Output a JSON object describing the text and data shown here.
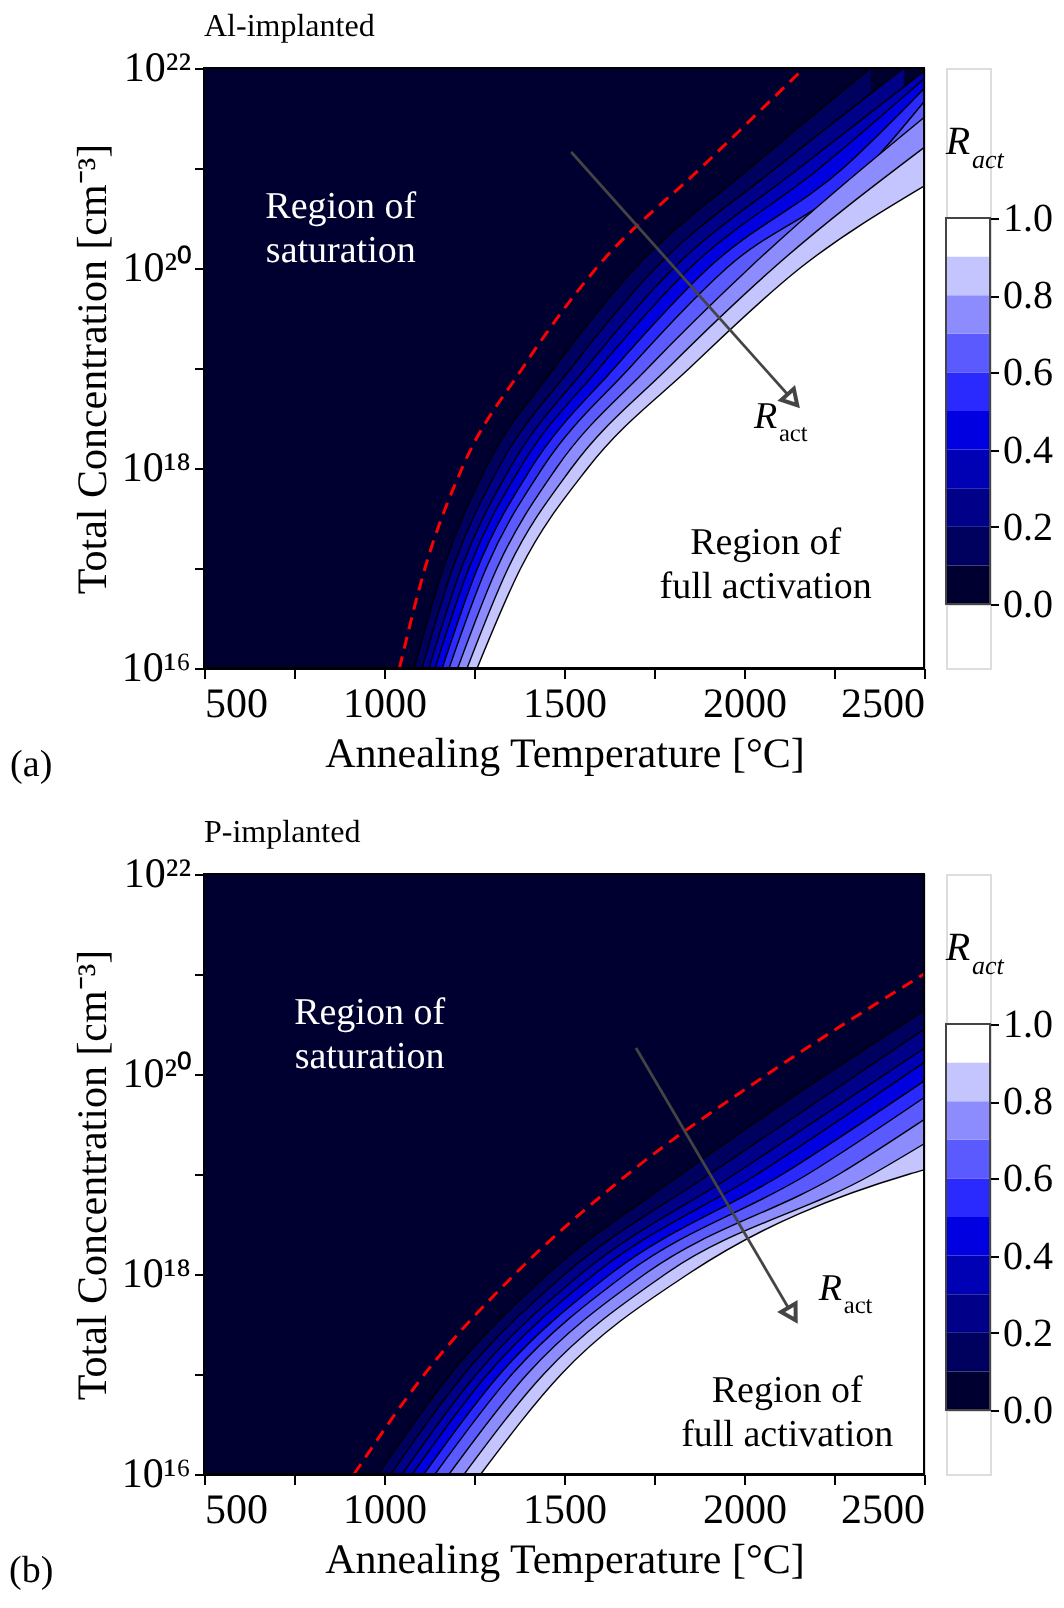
{
  "chart_data": [
    {
      "type": "area",
      "title": "Al-implanted",
      "xlabel": "Annealing Temperature [°C]",
      "ylabel": "Total Concentration [cm⁻³]",
      "clabel": "R$_{act}$",
      "log": "y",
      "xlim": [
        500,
        2500
      ],
      "ylim": [
        1e+16,
        1e+22
      ],
      "xticks": [
        500,
        {
          "value": 750,
          "label": null
        },
        1000,
        {
          "value": 1250,
          "label": null
        },
        1500,
        {
          "value": 1750,
          "label": null
        },
        2000,
        {
          "value": 2250,
          "label": null
        },
        2500
      ],
      "yticks": [
        {
          "value": 1e+16,
          "label": "10¹⁶"
        },
        {
          "value": 1e+17,
          "label": null
        },
        {
          "value": 1e+18,
          "label": "10¹⁸"
        },
        {
          "value": 1e+19,
          "label": null
        },
        {
          "value": 1e+20,
          "label": "10²⁰"
        },
        {
          "value": 1e+21,
          "label": null
        },
        {
          "value": 1e+22,
          "label": "10²²"
        }
      ],
      "clim": [
        0,
        1
      ],
      "cticks": [
        {
          "value": 0,
          "label": "0.0"
        },
        {
          "value": 0.2,
          "label": "0.2"
        },
        {
          "value": 0.4,
          "label": "0.4"
        },
        {
          "value": 0.6,
          "label": "0.6"
        },
        {
          "value": 0.8,
          "label": "0.8"
        },
        {
          "value": 1,
          "label": "1.0"
        }
      ],
      "bands": [
        {
          "axis": "x",
          "from": 500,
          "to": 2500,
          "color": "#000030"
        }
      ],
      "series": [
        {
          "color": "#00005e",
          "x": [
            1084,
            1165,
            1283,
            1473,
            1698,
            2017,
            2352
          ],
          "values": [
            1e+16,
            1e+17,
            1e+18,
            1e+19,
            1e+20,
            1e+21,
            1e+22
          ]
        },
        {
          "color": "#000088",
          "x": [
            1106,
            1191,
            1318,
            1520,
            1754,
            2089,
            2444
          ],
          "values": [
            1e+16,
            1e+17,
            1e+18,
            1e+19,
            1e+20,
            1e+21,
            1e+22
          ]
        },
        {
          "color": "#0000b4",
          "x": [
            1125,
            1215,
            1350,
            1561,
            1805,
            2154,
            2500
          ],
          "values": [
            1e+16,
            1e+17,
            1e+18,
            1e+19,
            1e+20,
            1e+21,
            9.3e+21
          ]
        },
        {
          "color": "#0000e0",
          "x": [
            1142,
            1236,
            1378,
            1598,
            1850,
            2211,
            2500
          ],
          "values": [
            1e+16,
            1e+17,
            1e+18,
            1e+19,
            1e+20,
            1e+21,
            7.8e+21
          ]
        },
        {
          "color": "#2a2aff",
          "x": [
            1162,
            1260,
            1409,
            1640,
            1901,
            2276,
            2500
          ],
          "values": [
            1e+16,
            1e+17,
            1e+18,
            1e+19,
            1e+20,
            1e+21,
            6.2e+21
          ]
        },
        {
          "color": "#5a5aff",
          "x": [
            1181,
            1284,
            1440,
            1682,
            1952,
            2341,
            2500
          ],
          "values": [
            1e+16,
            1e+17,
            1e+18,
            1e+19,
            1e+20,
            1e+21,
            4.6e+21
          ]
        },
        {
          "color": "#8c8cff",
          "x": [
            1205,
            1314,
            1479,
            1733,
            2015,
            2500
          ],
          "values": [
            1e+16,
            1e+17,
            1e+18,
            1e+19,
            1e+20,
            3.2e+21
          ]
        },
        {
          "color": "#c4c4ff",
          "x": [
            1231,
            1345,
            1521,
            1789,
            2082,
            2500
          ],
          "values": [
            1e+16,
            1e+17,
            1e+18,
            1e+19,
            1e+20,
            1.6e+21
          ]
        },
        {
          "color": "#ffffff",
          "x": [
            1259,
            1380,
            1566,
            1849,
            2156,
            2500
          ],
          "values": [
            1e+16,
            1e+17,
            1e+18,
            1e+19,
            1e+20,
            6.6e+20
          ]
        },
        {
          "type": "line",
          "line_style": "dashed",
          "color": "#ff0000",
          "x": [
            1043,
            1114,
            1217,
            1385,
            1590,
            1880,
            2167
          ],
          "values": [
            1e+16,
            1e+17,
            1e+18,
            1e+19,
            1e+20,
            1e+21,
            1e+22
          ]
        }
      ],
      "annotations": [
        "Region of saturation",
        "Region of full activation",
        "R$_{act}$",
        "(a)"
      ]
    },
    {
      "type": "area",
      "title": "P-implanted",
      "xlabel": "Annealing Temperature [°C]",
      "ylabel": "Total Concentration [cm⁻³]",
      "clabel": "R$_{act}$",
      "log": "y",
      "xlim": [
        500,
        2500
      ],
      "ylim": [
        1e+16,
        1e+22
      ],
      "xticks": [
        500,
        {
          "value": 750,
          "label": null
        },
        1000,
        {
          "value": 1250,
          "label": null
        },
        1500,
        {
          "value": 1750,
          "label": null
        },
        2000,
        {
          "value": 2250,
          "label": null
        },
        2500
      ],
      "yticks": [
        {
          "value": 1e+16,
          "label": "10¹⁶"
        },
        {
          "value": 1e+17,
          "label": null
        },
        {
          "value": 1e+18,
          "label": "10¹⁸"
        },
        {
          "value": 1e+19,
          "label": null
        },
        {
          "value": 1e+20,
          "label": "10²⁰"
        },
        {
          "value": 1e+21,
          "label": null
        },
        {
          "value": 1e+22,
          "label": "10²²"
        }
      ],
      "clim": [
        0,
        1
      ],
      "cticks": [
        {
          "value": 0,
          "label": "0.0"
        },
        {
          "value": 0.2,
          "label": "0.2"
        },
        {
          "value": 0.4,
          "label": "0.4"
        },
        {
          "value": 0.6,
          "label": "0.6"
        },
        {
          "value": 0.8,
          "label": "0.8"
        },
        {
          "value": 1,
          "label": "1.0"
        }
      ],
      "bands": [
        {
          "axis": "x",
          "from": 500,
          "to": 2500,
          "color": "#000030"
        }
      ],
      "series": [
        {
          "color": "#00005e",
          "x": [
            984,
            1185,
            1455,
            1827,
            2500
          ],
          "values": [
            1e+16,
            1e+17,
            1e+18,
            1e+19,
            4.3e+20
          ]
        },
        {
          "color": "#000088",
          "x": [
            1019,
            1223,
            1503,
            1905,
            2500
          ],
          "values": [
            1e+16,
            1e+17,
            1e+18,
            1e+19,
            2.8e+20
          ]
        },
        {
          "color": "#0000b4",
          "x": [
            1051,
            1257,
            1547,
            1975,
            2500
          ],
          "values": [
            1e+16,
            1e+17,
            1e+18,
            1e+19,
            1.8e+20
          ]
        },
        {
          "color": "#0000e0",
          "x": [
            1079,
            1288,
            1585,
            2038,
            2500
          ],
          "values": [
            1e+16,
            1e+17,
            1e+18,
            1e+19,
            1.3e+20
          ]
        },
        {
          "color": "#2a2aff",
          "x": [
            1111,
            1322,
            1629,
            2108,
            2500
          ],
          "values": [
            1e+16,
            1e+17,
            1e+18,
            1e+19,
            8.5e+19
          ]
        },
        {
          "color": "#5a5aff",
          "x": [
            1142,
            1356,
            1672,
            2178,
            2500
          ],
          "values": [
            1e+16,
            1e+17,
            1e+18,
            1e+19,
            5.8e+19
          ]
        },
        {
          "color": "#8c8cff",
          "x": [
            1181,
            1398,
            1725,
            2265,
            2500
          ],
          "values": [
            1e+16,
            1e+17,
            1e+18,
            1e+19,
            3.5e+19
          ]
        },
        {
          "color": "#c4c4ff",
          "x": [
            1223,
            1444,
            1782,
            2358,
            2500
          ],
          "values": [
            1e+16,
            1e+17,
            1e+18,
            1e+19,
            2e+19
          ]
        },
        {
          "color": "#ffffff",
          "x": [
            1269,
            1493,
            1845,
            2460,
            2500
          ],
          "values": [
            1e+16,
            1e+17,
            1e+18,
            1e+19,
            1.1e+19
          ]
        },
        {
          "type": "line",
          "line_style": "dashed",
          "color": "#ff0000",
          "x": [
            917,
            1113,
            1364,
            1678,
            2066,
            2500
          ],
          "values": [
            1e+16,
            1e+17,
            1e+18,
            1e+19,
            1e+20,
            1e+21
          ]
        }
      ],
      "annotations": [
        "Region of saturation",
        "Region of full activation",
        "R$_{act}$",
        "(b)"
      ]
    }
  ]
}
